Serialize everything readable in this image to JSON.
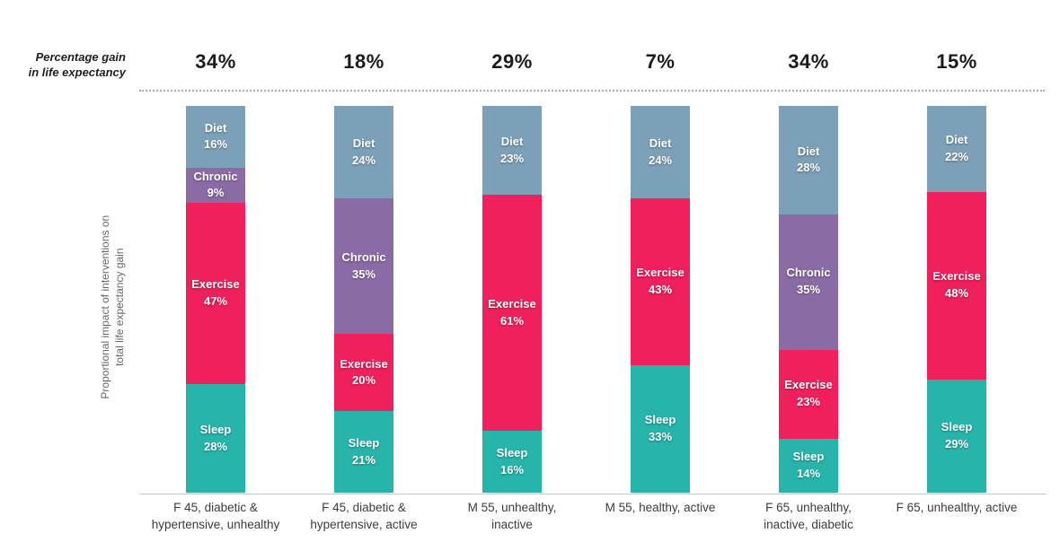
{
  "header": {
    "label_line1": "Percentage gain",
    "label_line2": "in life expectancy"
  },
  "y_axis": {
    "label_line1": "Proportional impact of interventions on",
    "label_line2": "total life expectancy gain"
  },
  "chart_data": {
    "type": "bar",
    "stacked": true,
    "percent_normalized": true,
    "unit": "%",
    "legend": "none",
    "grid": "off",
    "gain_row_label": "Percentage gain in life expectancy",
    "ylabel": "Proportional impact of interventions on total life expectancy gain",
    "segment_order_top_to_bottom": [
      "Diet",
      "Chronic",
      "Exercise",
      "Sleep"
    ],
    "colors": {
      "Diet": "#7CA0B8",
      "Chronic": "#8A6BA5",
      "Exercise": "#F0205C",
      "Sleep": "#27B4AB"
    },
    "categories": [
      "F 45, diabetic &\nhypertensive, unhealthy",
      "F 45, diabetic &\nhypertensive, active",
      "M 55, unhealthy,\ninactive",
      "M 55, healthy, active",
      "F 65, unhealthy,\ninactive, diabetic",
      "F 65, unhealthy, active"
    ],
    "gain_percentages": [
      34,
      18,
      29,
      7,
      34,
      15
    ],
    "bars": [
      {
        "category": "F 45, diabetic &\nhypertensive, unhealthy",
        "gain_label": "34%",
        "segments": [
          {
            "name": "Diet",
            "value": 16,
            "label": "Diet\n16%"
          },
          {
            "name": "Chronic",
            "value": 9,
            "label": "Chronic\n9%"
          },
          {
            "name": "Exercise",
            "value": 47,
            "label": "Exercise\n47%"
          },
          {
            "name": "Sleep",
            "value": 28,
            "label": "Sleep\n28%"
          }
        ]
      },
      {
        "category": "F 45, diabetic &\nhypertensive, active",
        "gain_label": "18%",
        "segments": [
          {
            "name": "Diet",
            "value": 24,
            "label": "Diet\n24%"
          },
          {
            "name": "Chronic",
            "value": 35,
            "label": "Chronic\n35%"
          },
          {
            "name": "Exercise",
            "value": 20,
            "label": "Exercise\n20%"
          },
          {
            "name": "Sleep",
            "value": 21,
            "label": "Sleep\n21%"
          }
        ]
      },
      {
        "category": "M 55, unhealthy,\ninactive",
        "gain_label": "29%",
        "segments": [
          {
            "name": "Diet",
            "value": 23,
            "label": "Diet\n23%"
          },
          {
            "name": "Exercise",
            "value": 61,
            "label": "Exercise\n61%"
          },
          {
            "name": "Sleep",
            "value": 16,
            "label": "Sleep\n16%"
          }
        ]
      },
      {
        "category": "M 55, healthy, active",
        "gain_label": "7%",
        "segments": [
          {
            "name": "Diet",
            "value": 24,
            "label": "Diet\n24%"
          },
          {
            "name": "Exercise",
            "value": 43,
            "label": "Exercise\n43%"
          },
          {
            "name": "Sleep",
            "value": 33,
            "label": "Sleep\n33%"
          }
        ]
      },
      {
        "category": "F 65, unhealthy,\ninactive, diabetic",
        "gain_label": "34%",
        "segments": [
          {
            "name": "Diet",
            "value": 28,
            "label": "Diet\n28%"
          },
          {
            "name": "Chronic",
            "value": 35,
            "label": "Chronic\n35%"
          },
          {
            "name": "Exercise",
            "value": 23,
            "label": "Exercise\n23%"
          },
          {
            "name": "Sleep",
            "value": 14,
            "label": "Sleep\n14%"
          }
        ]
      },
      {
        "category": "F 65, unhealthy, active",
        "gain_label": "15%",
        "segments": [
          {
            "name": "Diet",
            "value": 22,
            "label": "Diet\n22%"
          },
          {
            "name": "Exercise",
            "value": 48,
            "label": "Exercise\n48%"
          },
          {
            "name": "Sleep",
            "value": 29,
            "label": "Sleep\n29%"
          }
        ]
      }
    ]
  }
}
